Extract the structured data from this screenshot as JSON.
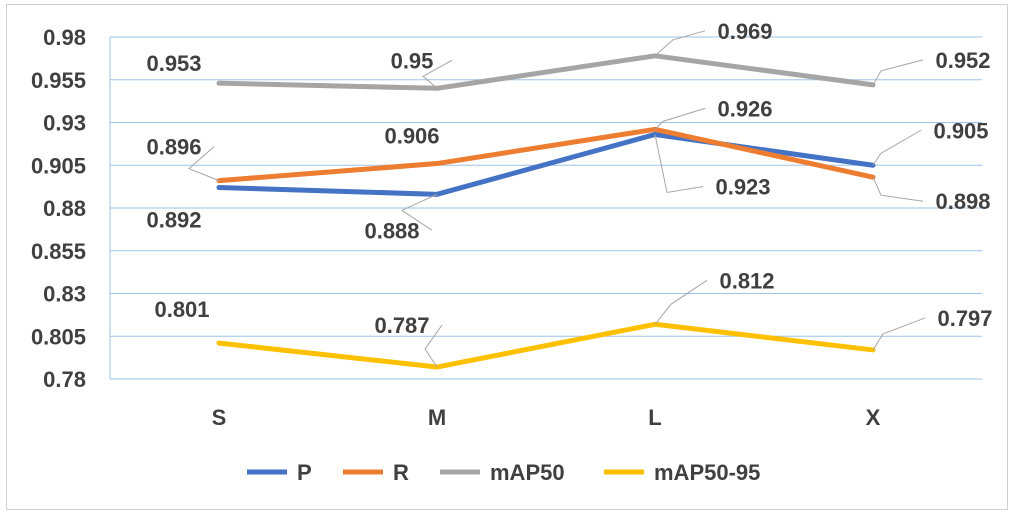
{
  "chart_data": {
    "type": "line",
    "categories": [
      "S",
      "M",
      "L",
      "X"
    ],
    "ylim": [
      0.78,
      0.98
    ],
    "yticks": [
      "0.98",
      "0.955",
      "0.93",
      "0.905",
      "0.88",
      "0.855",
      "0.83",
      "0.805",
      "0.78"
    ],
    "grid": true,
    "legend_position": "bottom",
    "series": [
      {
        "name": "P",
        "color": "#4472C4",
        "values": [
          0.892,
          0.888,
          0.923,
          0.905
        ],
        "labels": [
          "0.892",
          "0.888",
          "0.923",
          "0.905"
        ]
      },
      {
        "name": "R",
        "color": "#ED7D31",
        "values": [
          0.896,
          0.906,
          0.926,
          0.898
        ],
        "labels": [
          "0.896",
          "0.906",
          "0.926",
          "0.898"
        ]
      },
      {
        "name": "mAP50",
        "color": "#A5A5A5",
        "values": [
          0.953,
          0.95,
          0.969,
          0.952
        ],
        "labels": [
          "0.953",
          "0.95",
          "0.969",
          "0.952"
        ]
      },
      {
        "name": "mAP50-95",
        "color": "#FFC000",
        "values": [
          0.801,
          0.787,
          0.812,
          0.797
        ],
        "labels": [
          "0.801",
          "0.787",
          "0.812",
          "0.797"
        ]
      }
    ]
  }
}
